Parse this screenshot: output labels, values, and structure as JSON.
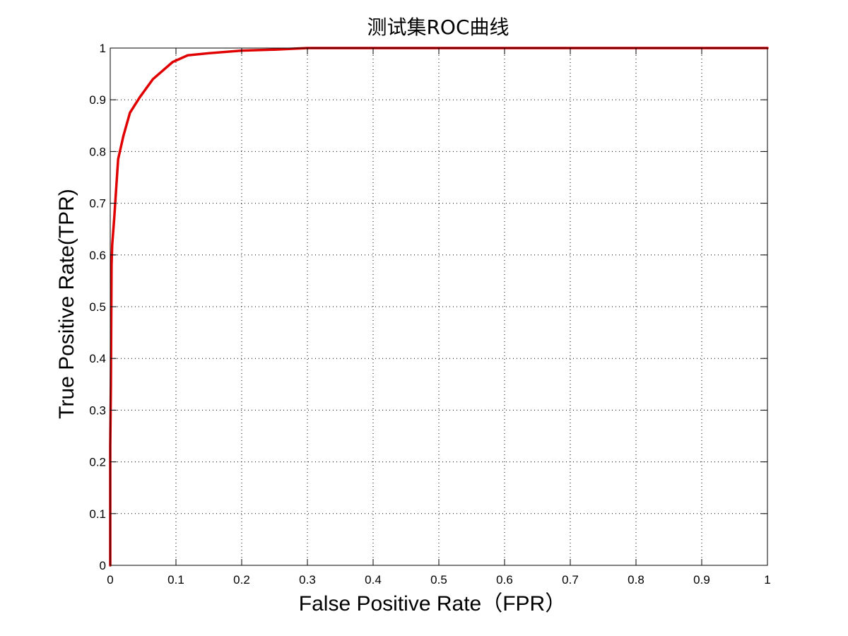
{
  "chart_data": {
    "type": "line",
    "title": "测试集ROC曲线",
    "xlabel": "False Positive Rate（FPR）",
    "ylabel": "True Positive Rate(TPR)",
    "xlim": [
      0,
      1
    ],
    "ylim": [
      0,
      1
    ],
    "grid": true,
    "x_ticks": [
      "0",
      "0.1",
      "0.2",
      "0.3",
      "0.4",
      "0.5",
      "0.6",
      "0.7",
      "0.8",
      "0.9",
      "1"
    ],
    "y_ticks": [
      "0",
      "0.1",
      "0.2",
      "0.3",
      "0.4",
      "0.5",
      "0.6",
      "0.7",
      "0.8",
      "0.9",
      "1"
    ],
    "series": [
      {
        "color": "#e00000",
        "points": [
          [
            0,
            0
          ],
          [
            0,
            0.23
          ],
          [
            0.001,
            0.35
          ],
          [
            0.002,
            0.58
          ],
          [
            0.003,
            0.62
          ],
          [
            0.006,
            0.67
          ],
          [
            0.012,
            0.785
          ],
          [
            0.02,
            0.83
          ],
          [
            0.03,
            0.875
          ],
          [
            0.045,
            0.905
          ],
          [
            0.065,
            0.94
          ],
          [
            0.095,
            0.973
          ],
          [
            0.118,
            0.986
          ],
          [
            0.15,
            0.99
          ],
          [
            0.2,
            0.995
          ],
          [
            0.25,
            0.997
          ],
          [
            0.3,
            1.0
          ],
          [
            1.0,
            1.0
          ]
        ]
      }
    ]
  }
}
